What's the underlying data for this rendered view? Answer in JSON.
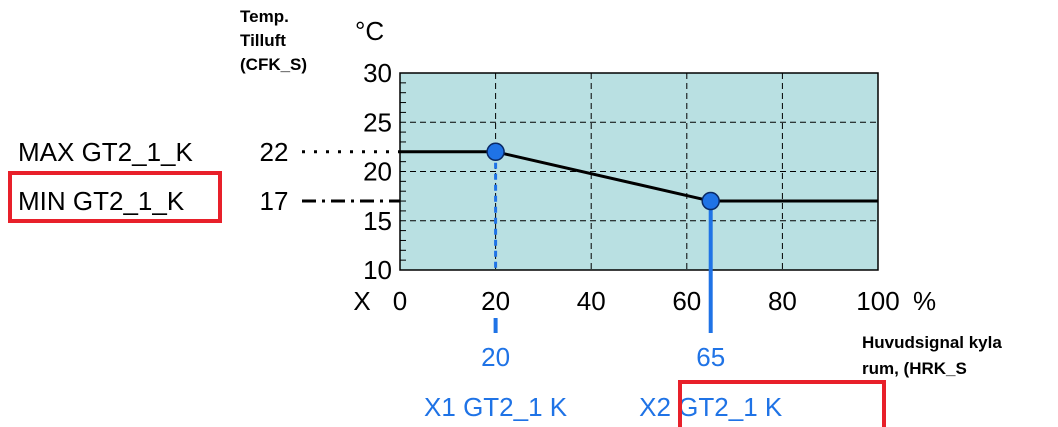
{
  "chart_data": {
    "type": "line",
    "ylabel_lines": [
      "Temp.",
      "Tilluft",
      "(CFK_S)"
    ],
    "yunit": "°C",
    "xlabel_lines": [
      "Huvudsignal kyla",
      "rum, (HRK_S"
    ],
    "xunit": "%",
    "x_axis_prefix": "X",
    "xlim": [
      0,
      100
    ],
    "ylim": [
      10,
      30
    ],
    "x_ticks": [
      "0",
      "20",
      "40",
      "60",
      "80",
      "100"
    ],
    "y_ticks": [
      "10",
      "15",
      "20",
      "25",
      "30"
    ],
    "grid": true,
    "plot_background": "#b9e0e2",
    "series": [
      {
        "x": [
          0,
          20,
          65,
          100
        ],
        "y": [
          22,
          22,
          17,
          17
        ],
        "color": "#000000"
      }
    ],
    "points": [
      {
        "x": 20,
        "y": 22,
        "color": "#1f73e6"
      },
      {
        "x": 65,
        "y": 17,
        "color": "#1f73e6"
      }
    ],
    "left_labels": [
      {
        "name": "MAX GT2_1_K",
        "value": "22",
        "y": 22,
        "highlighted": false
      },
      {
        "name": "MIN GT2_1_K",
        "value": "17",
        "y": 17,
        "highlighted": true
      }
    ],
    "bottom_labels": [
      {
        "value": "20",
        "x": 20,
        "name": "X1 GT2_1 K",
        "highlighted": false
      },
      {
        "value": "65",
        "x": 65,
        "name": "X2 GT2_1 K",
        "highlighted": true
      }
    ],
    "highlight_color": "#e8202a",
    "marker_color": "#1f73e6"
  }
}
